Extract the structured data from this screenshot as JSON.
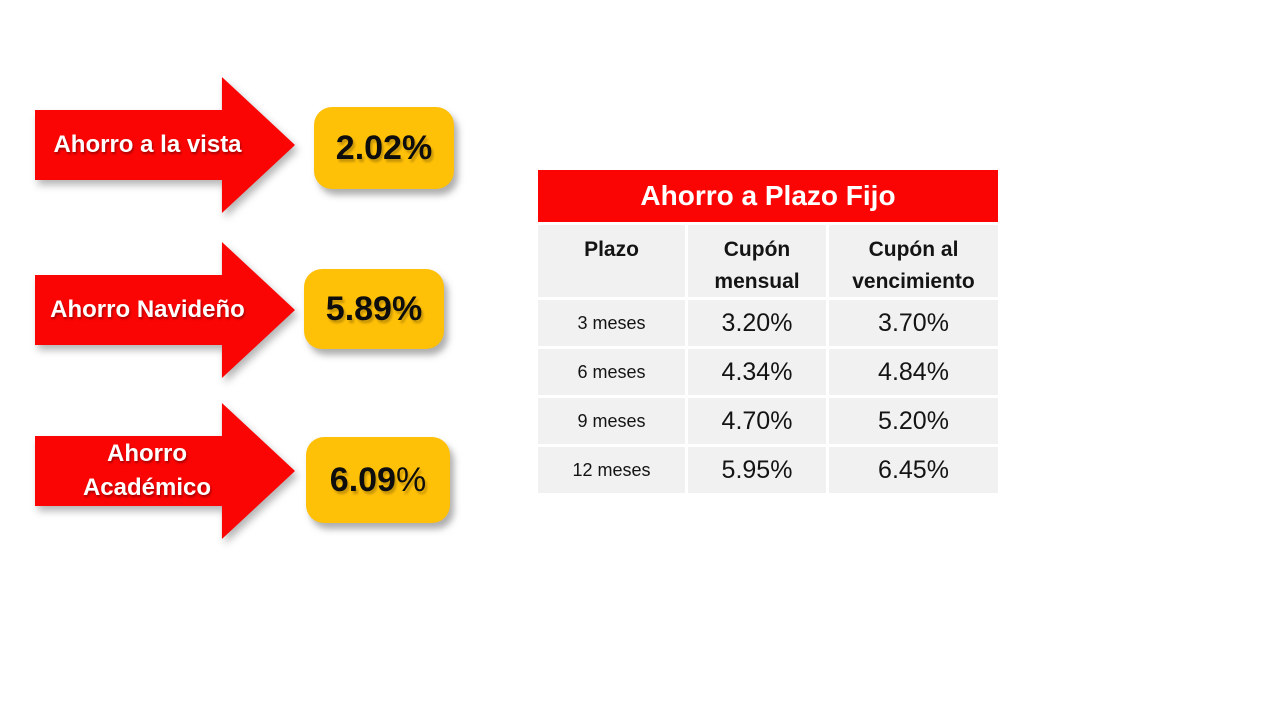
{
  "slide": {
    "background": "#FFFFFF"
  },
  "colors": {
    "arrow_red": "#FB0404",
    "badge_yellow": "#FFC008",
    "table_cell_gray": "#F1F1F1",
    "text_dark": "#141414",
    "text_white": "#FFFFFF"
  },
  "savings_arrows": [
    {
      "label": "Ahorro a la vista",
      "rate_value": "2.02",
      "rate_suffix": "%"
    },
    {
      "label": "Ahorro Navideño",
      "rate_value": "5.89",
      "rate_suffix": "%"
    },
    {
      "label": "Ahorro Académico",
      "rate_value": "6.09",
      "rate_suffix": "%"
    }
  ],
  "fixed_term_table": {
    "title": "Ahorro a Plazo Fijo",
    "headers": [
      "Plazo",
      "Cupón mensual",
      "Cupón al vencimiento"
    ],
    "rows": [
      [
        "3 meses",
        "3.20%",
        "3.70%"
      ],
      [
        "6 meses",
        "4.34%",
        "4.84%"
      ],
      [
        "9 meses",
        "4.70%",
        "5.20%"
      ],
      [
        "12 meses",
        "5.95%",
        "6.45%"
      ]
    ]
  }
}
